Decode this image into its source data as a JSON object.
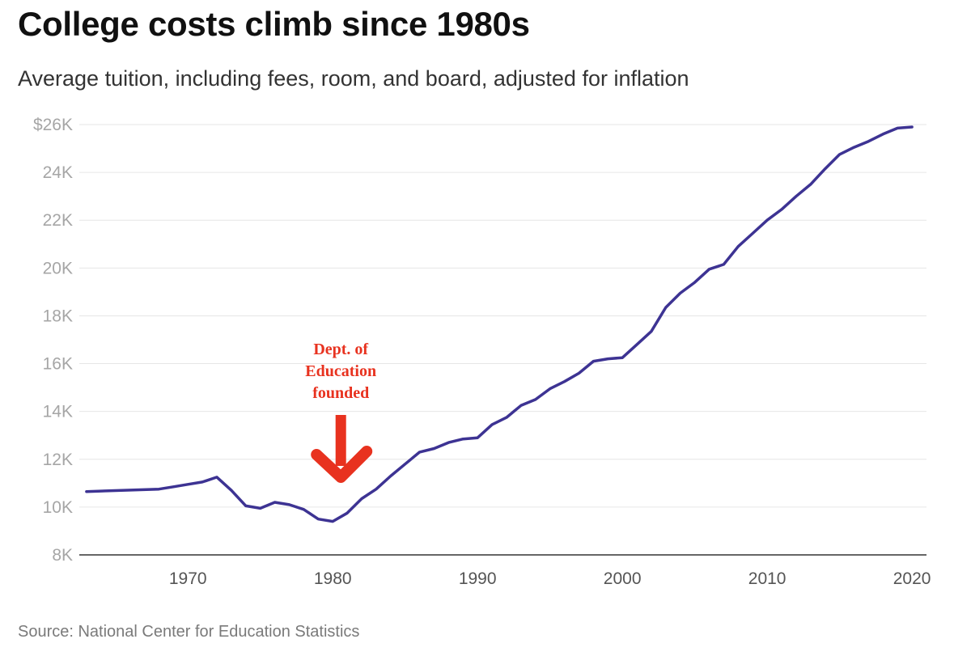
{
  "header": {
    "title": "College costs climb since 1980s",
    "subtitle": "Average tuition, including fees, room, and board, adjusted for inflation"
  },
  "footer": {
    "source": "Source: National Center for Education Statistics"
  },
  "colors": {
    "line": "#3d3393",
    "annotation": "#e8321f",
    "grid": "#e6e6e6"
  },
  "chart_data": {
    "type": "line",
    "title": "College costs climb since 1980s",
    "subtitle": "Average tuition, including fees, room, and board, adjusted for inflation",
    "xlabel": "",
    "ylabel": "",
    "xlim": [
      1962.5,
      2021
    ],
    "ylim": [
      8000,
      26000
    ],
    "grid": true,
    "x_ticks": [
      1970,
      1980,
      1990,
      2000,
      2010,
      2020
    ],
    "x_tick_labels": [
      "1970",
      "1980",
      "1990",
      "2000",
      "2010",
      "2020"
    ],
    "y_ticks": [
      8000,
      10000,
      12000,
      14000,
      16000,
      18000,
      20000,
      22000,
      24000,
      26000
    ],
    "y_tick_labels": [
      "8K",
      "10K",
      "12K",
      "14K",
      "16K",
      "18K",
      "20K",
      "22K",
      "24K",
      "$26K"
    ],
    "series": [
      {
        "name": "Average tuition",
        "x": [
          1963,
          1968,
          1969,
          1970,
          1971,
          1972,
          1973,
          1974,
          1975,
          1976,
          1977,
          1978,
          1979,
          1980,
          1981,
          1982,
          1983,
          1984,
          1985,
          1986,
          1987,
          1988,
          1989,
          1990,
          1991,
          1992,
          1993,
          1994,
          1995,
          1996,
          1997,
          1998,
          1999,
          2000,
          2001,
          2002,
          2003,
          2004,
          2005,
          2006,
          2007,
          2008,
          2009,
          2010,
          2011,
          2012,
          2013,
          2014,
          2015,
          2016,
          2017,
          2018,
          2019,
          2020
        ],
        "values": [
          10650,
          10750,
          10850,
          10950,
          11050,
          11250,
          10700,
          10050,
          9950,
          10200,
          10100,
          9900,
          9500,
          9400,
          9750,
          10350,
          10750,
          11300,
          11800,
          12300,
          12450,
          12700,
          12850,
          12900,
          13450,
          13750,
          14250,
          14500,
          14950,
          15250,
          15600,
          16100,
          16200,
          16250,
          16800,
          17350,
          18350,
          18950,
          19400,
          19950,
          20150,
          20900,
          21450,
          22000,
          22450,
          23000,
          23500,
          24150,
          24750,
          25050,
          25300,
          25600,
          25850,
          25900
        ]
      }
    ],
    "annotations": [
      {
        "lines": [
          "Dept. of",
          "Education",
          "founded"
        ],
        "x": 1980,
        "arrow": "down"
      }
    ]
  }
}
